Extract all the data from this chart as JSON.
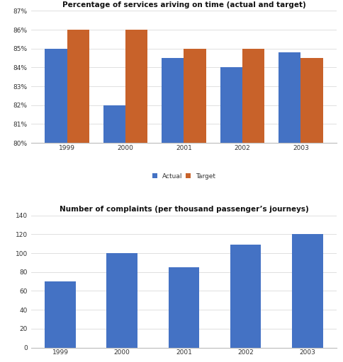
{
  "chart1": {
    "title": "Percentage of services ariving on time (actual and target)",
    "years": [
      "1999",
      "2000",
      "2001",
      "2002",
      "2003"
    ],
    "actual": [
      85.0,
      82.0,
      84.5,
      84.0,
      84.8
    ],
    "target": [
      86.0,
      86.0,
      85.0,
      85.0,
      84.5
    ],
    "ylim": [
      80,
      87
    ],
    "yticks": [
      80,
      81,
      82,
      83,
      84,
      85,
      86,
      87
    ],
    "ytick_labels": [
      "80%",
      "81%",
      "82%",
      "83%",
      "84%",
      "85%",
      "86%",
      "87%"
    ],
    "actual_color": "#4472c4",
    "target_color": "#c8622a",
    "bar_width": 0.38,
    "legend_labels": [
      "Actual",
      "Target"
    ]
  },
  "chart2": {
    "title": "Number of complaints (per thousand passenger’s journeys)",
    "years": [
      "1999",
      "2000",
      "2001",
      "2002",
      "2003"
    ],
    "values": [
      70,
      100,
      85,
      109,
      120
    ],
    "ylim": [
      0,
      140
    ],
    "yticks": [
      0,
      20,
      40,
      60,
      80,
      100,
      120,
      140
    ],
    "bar_color": "#4472c4",
    "bar_width": 0.5
  },
  "bg_color": "#ffffff",
  "grid_color": "#e0e0e0",
  "title_fontsize": 7.5,
  "tick_fontsize": 6.5
}
